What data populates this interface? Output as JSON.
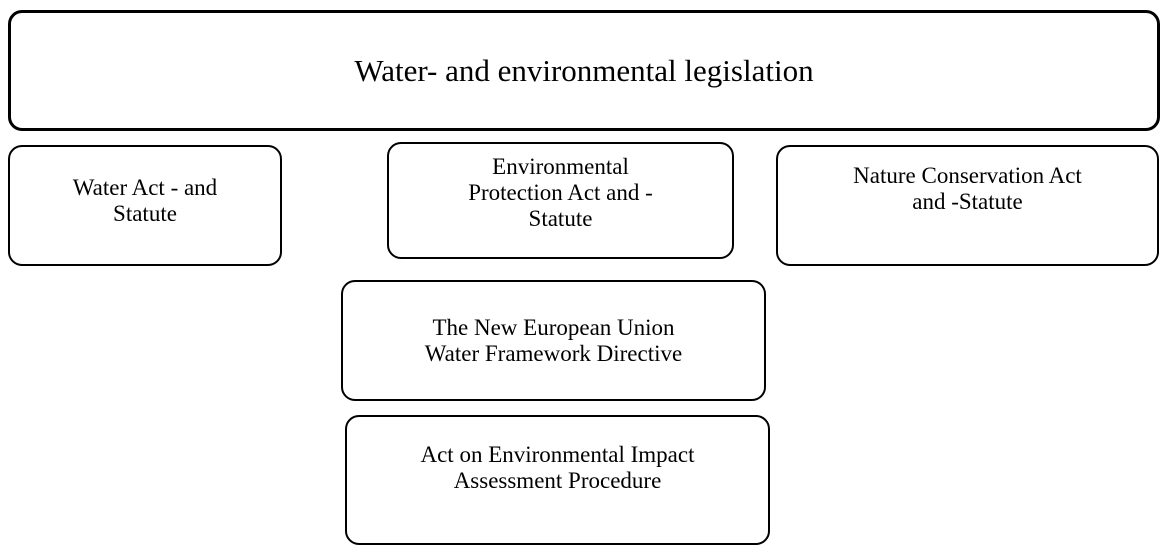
{
  "title": "Water- and environmental legislation",
  "nodes": [
    {
      "lines": [
        "Water Act - and",
        "Statute"
      ]
    },
    {
      "lines": [
        "Environmental",
        "Protection Act and -",
        "Statute"
      ]
    },
    {
      "lines": [
        "Nature Conservation Act",
        "and -Statute"
      ]
    },
    {
      "lines": [
        "The New European Union",
        "Water Framework Directive"
      ]
    },
    {
      "lines": [
        "Act on Environmental Impact",
        "Assessment Procedure"
      ]
    }
  ]
}
